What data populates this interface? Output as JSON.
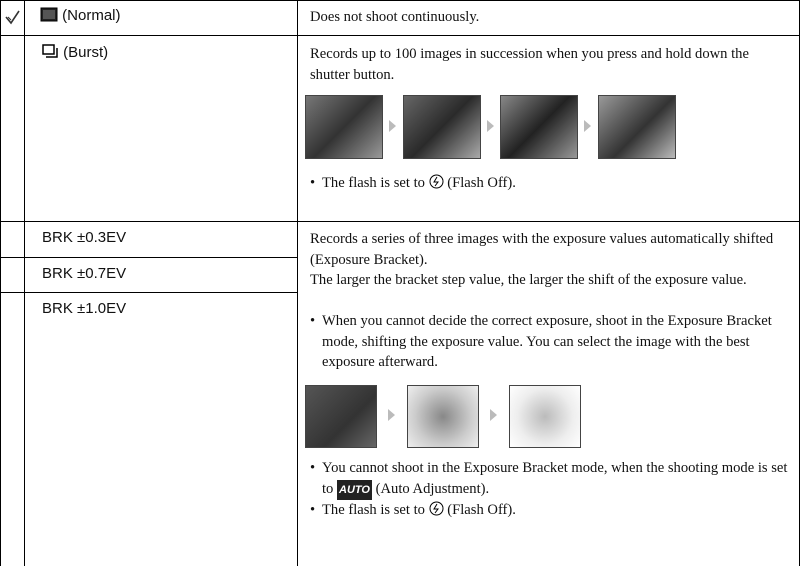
{
  "table": {
    "rows": [
      {
        "label": "(Normal)",
        "text": "Does not shoot continuously."
      },
      {
        "label": "(Burst)",
        "text": "Records up to 100 images in succession when you press and hold down the shutter button.",
        "note": {
          "before": "The flash is set to",
          "after": "(Flash Off)."
        }
      },
      {
        "labels": [
          "BRK ±0.3EV",
          "BRK ±0.7EV",
          "BRK ±1.0EV"
        ],
        "paragraphs": [
          "Records a series of three images with the exposure values automatically shifted (Exposure Bracket).",
          "The larger the bracket step value, the larger the shift of the exposure value."
        ],
        "tip": "When you cannot decide the correct exposure, shoot in the Exposure Bracket mode, shifting the exposure value. You can select the image with the best exposure afterward.",
        "notes": [
          {
            "before": "You cannot shoot in the Exposure Bracket mode, when the shooting mode is set to",
            "icon": "AUTO",
            "after": "(Auto Adjustment)."
          },
          {
            "before": "The flash is set to",
            "after": "(Flash Off)."
          }
        ]
      }
    ]
  }
}
